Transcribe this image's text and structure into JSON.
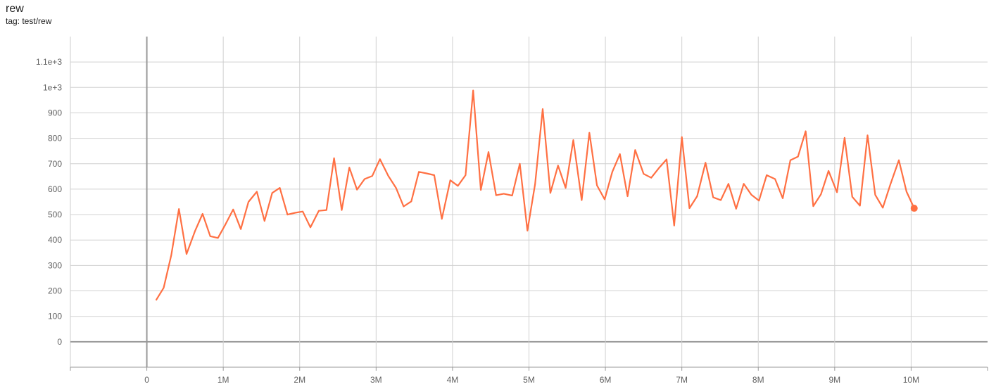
{
  "chart_data": {
    "type": "line",
    "title": "rew",
    "subtitle": "tag: test/rew",
    "xlabel": "",
    "ylabel": "",
    "xlim": [
      -1000000,
      11000000
    ],
    "ylim": [
      -100,
      1200
    ],
    "grid": true,
    "x_ticks": [
      0,
      1000000,
      2000000,
      3000000,
      4000000,
      5000000,
      6000000,
      7000000,
      8000000,
      9000000,
      10000000
    ],
    "x_tick_labels": [
      "0",
      "1M",
      "2M",
      "3M",
      "4M",
      "5M",
      "6M",
      "7M",
      "8M",
      "9M",
      "10M"
    ],
    "y_ticks": [
      0,
      100,
      200,
      300,
      400,
      500,
      600,
      700,
      800,
      900,
      1000,
      1100
    ],
    "y_tick_labels": [
      "0",
      "100",
      "200",
      "300",
      "400",
      "500",
      "600",
      "700",
      "800",
      "900",
      "1e+3",
      "1.1e+3"
    ],
    "series": [
      {
        "color": "#ff7043",
        "x_millions": [
          0.12,
          0.22,
          0.32,
          0.42,
          0.52,
          0.63,
          0.73,
          0.83,
          0.93,
          1.03,
          1.13,
          1.23,
          1.33,
          1.44,
          1.54,
          1.64,
          1.74,
          1.84,
          1.94,
          2.04,
          2.14,
          2.25,
          2.35,
          2.45,
          2.55,
          2.65,
          2.75,
          2.85,
          2.95,
          3.05,
          3.16,
          3.26,
          3.36,
          3.46,
          3.56,
          3.66,
          3.76,
          3.86,
          3.97,
          4.07,
          4.17,
          4.27,
          4.37,
          4.47,
          4.57,
          4.67,
          4.78,
          4.88,
          4.98,
          5.08,
          5.18,
          5.28,
          5.38,
          5.48,
          5.58,
          5.69,
          5.79,
          5.89,
          5.99,
          6.09,
          6.19,
          6.29,
          6.39,
          6.5,
          6.6,
          6.7,
          6.8,
          6.9,
          7.0,
          7.1,
          7.2,
          7.31,
          7.41,
          7.51,
          7.61,
          7.71,
          7.81,
          7.91,
          8.01,
          8.11,
          8.22,
          8.32,
          8.42,
          8.52,
          8.62,
          8.72,
          8.82,
          8.92,
          9.03,
          9.13,
          9.23,
          9.33,
          9.43,
          9.53,
          9.63,
          9.73,
          9.84,
          9.94,
          10.04
        ],
        "values": [
          163,
          212,
          340,
          522,
          345,
          435,
          503,
          415,
          408,
          462,
          520,
          443,
          550,
          590,
          475,
          585,
          605,
          500,
          507,
          512,
          450,
          515,
          518,
          722,
          518,
          685,
          598,
          640,
          652,
          718,
          652,
          605,
          532,
          552,
          668,
          662,
          655,
          483,
          635,
          613,
          655,
          988,
          597,
          746,
          576,
          582,
          575,
          700,
          437,
          620,
          915,
          585,
          693,
          605,
          793,
          557,
          822,
          615,
          560,
          668,
          738,
          572,
          754,
          660,
          645,
          683,
          717,
          457,
          805,
          525,
          572,
          704,
          568,
          557,
          621,
          523,
          621,
          578,
          555,
          655,
          640,
          564,
          714,
          728,
          828,
          533,
          580,
          672,
          588,
          802,
          570,
          535,
          812,
          578,
          527,
          620,
          714,
          590,
          525
        ]
      }
    ]
  }
}
